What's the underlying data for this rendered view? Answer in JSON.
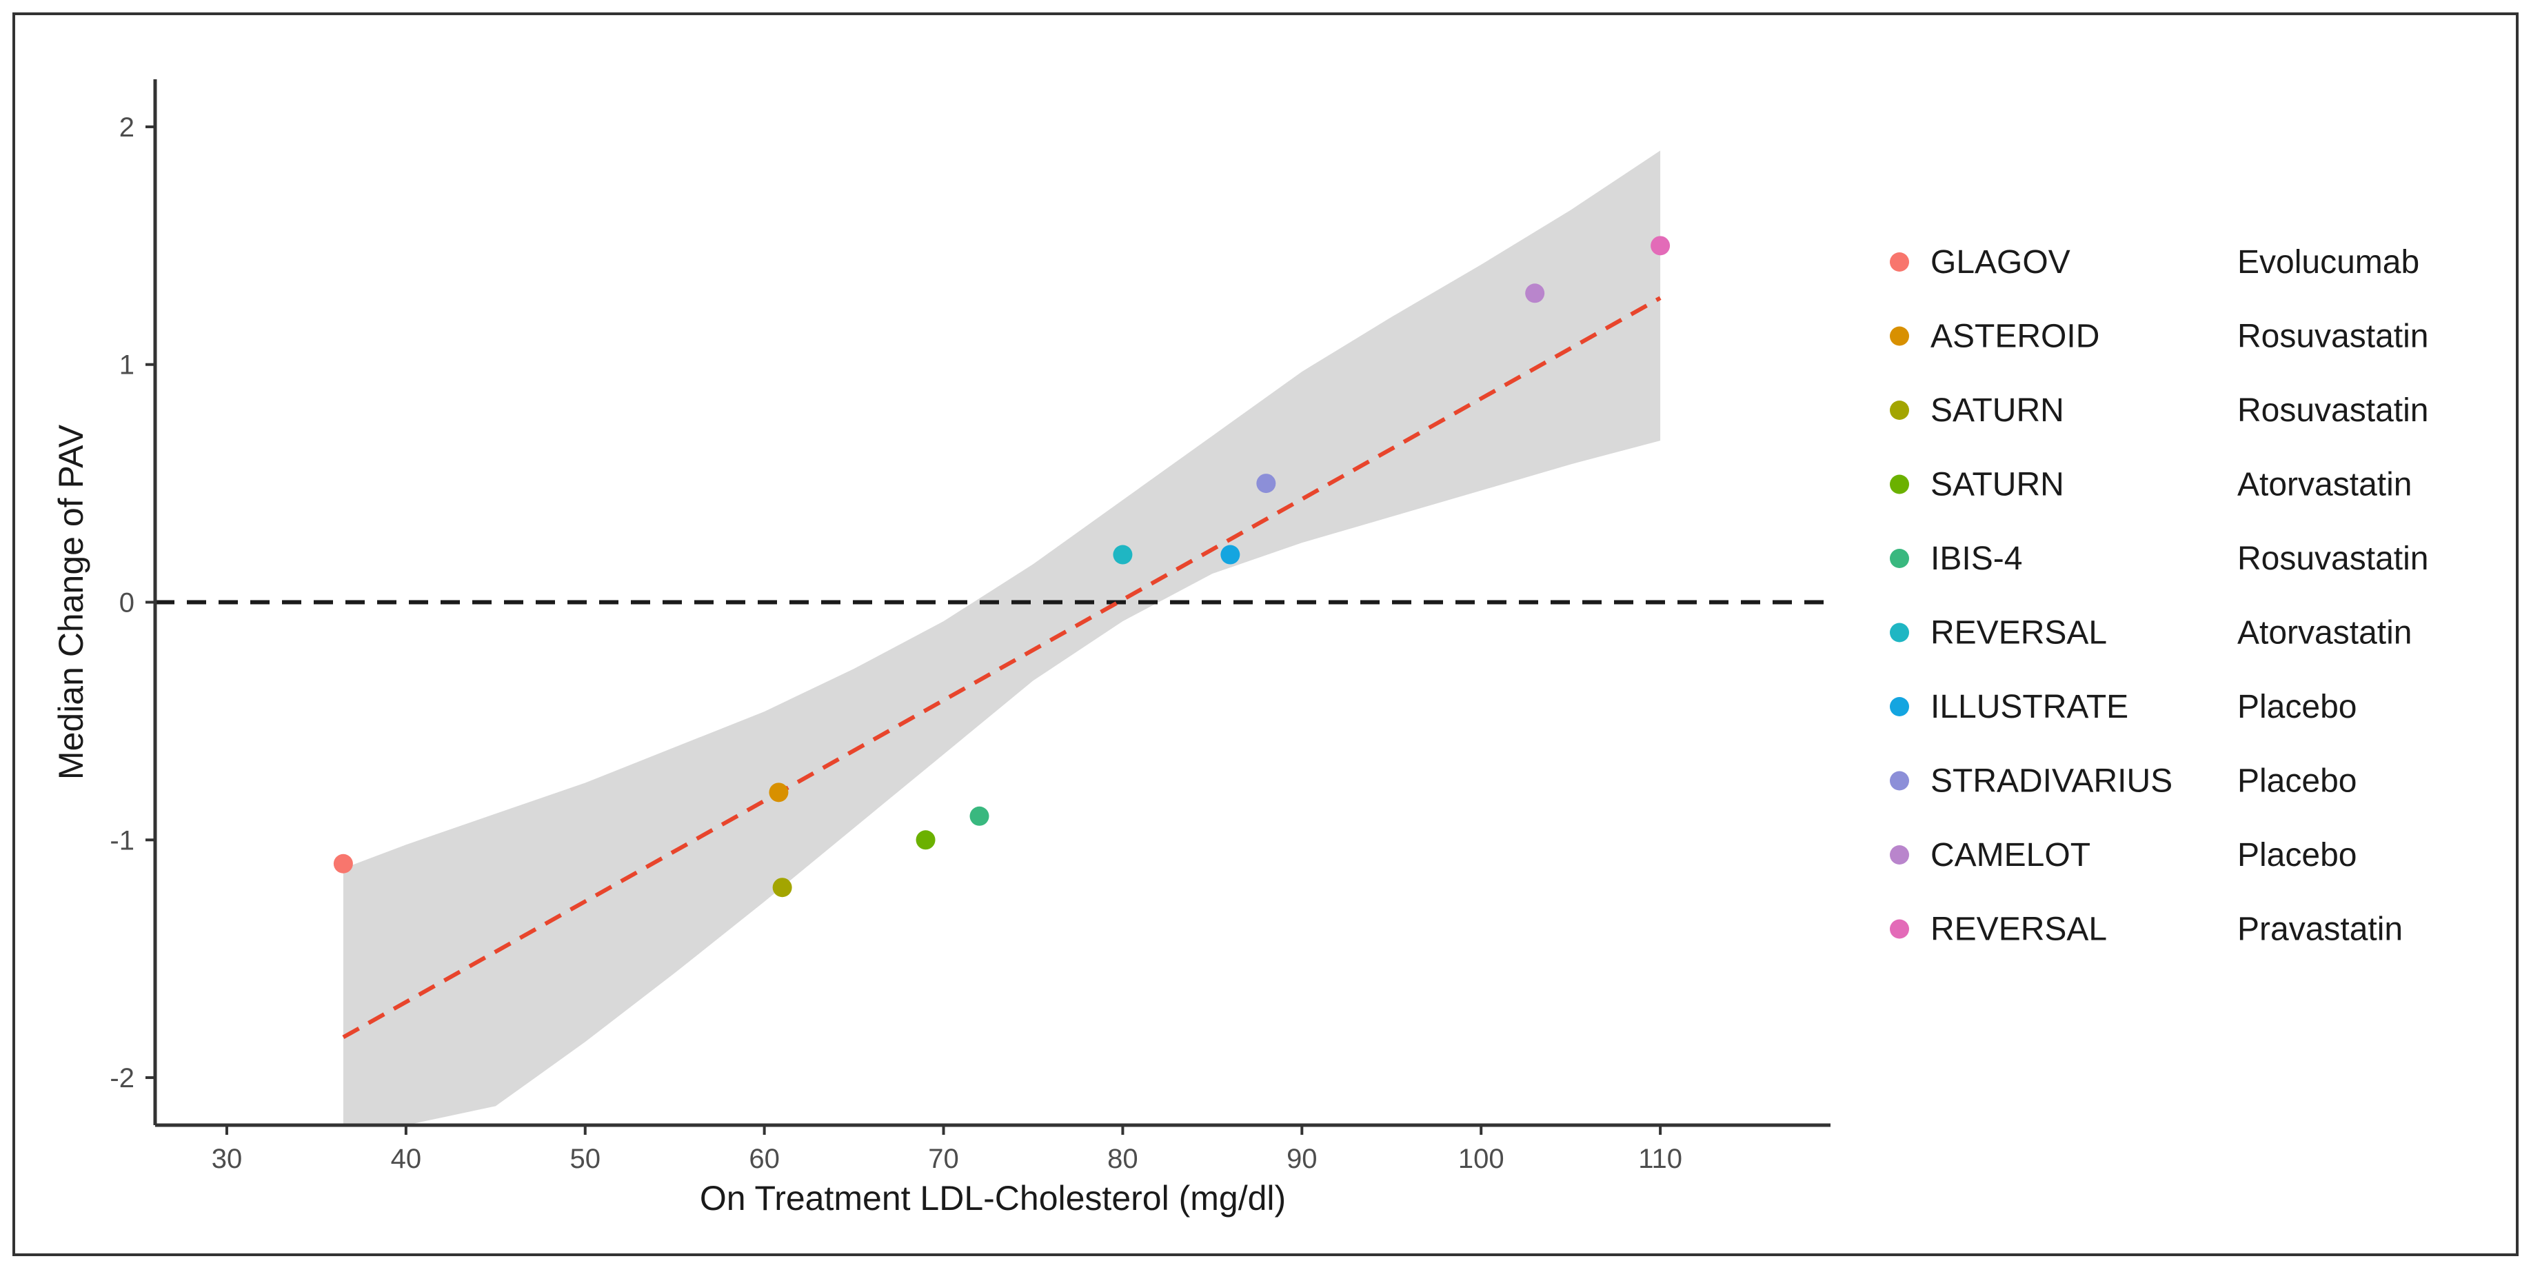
{
  "chart_data": {
    "type": "scatter",
    "xlabel": "On Treatment LDL-Cholesterol (mg/dl)",
    "ylabel": "Median Change of PAV",
    "xlim": [
      26,
      119.5
    ],
    "ylim": [
      -2.2,
      2.2
    ],
    "xticks": [
      30,
      40,
      50,
      60,
      70,
      80,
      90,
      100,
      110
    ],
    "yticks": [
      -2,
      -1,
      0,
      1,
      2
    ],
    "xtick_labels": [
      "30",
      "40",
      "50",
      "60",
      "70",
      "80",
      "90",
      "100",
      "110"
    ],
    "ytick_labels": [
      "-2",
      "-1",
      "0",
      "1",
      "2"
    ],
    "reference_line": {
      "y": 0,
      "style": "dashed",
      "color": "#1a1a1a"
    },
    "regression": {
      "x": [
        36.5,
        110
      ],
      "y": [
        -1.83,
        1.28
      ],
      "color": "#e8452c",
      "style": "dashed"
    },
    "confidence_band": {
      "color": "#d9d9d9",
      "x": [
        36.5,
        40,
        45,
        50,
        55,
        60,
        65,
        70,
        75,
        80,
        85,
        90,
        95,
        100,
        105,
        110
      ],
      "upper": [
        -1.12,
        -1.02,
        -0.89,
        -0.76,
        -0.61,
        -0.46,
        -0.28,
        -0.08,
        0.16,
        0.43,
        0.7,
        0.97,
        1.2,
        1.42,
        1.65,
        1.9
      ],
      "lower": [
        -2.2,
        -2.2,
        -2.12,
        -1.85,
        -1.56,
        -1.26,
        -0.95,
        -0.64,
        -0.33,
        -0.08,
        0.12,
        0.25,
        0.36,
        0.47,
        0.58,
        0.68
      ]
    },
    "series": [
      {
        "trial": "GLAGOV",
        "drug": "Evolucumab",
        "color": "#f8766d",
        "x": 36.5,
        "y": -1.1
      },
      {
        "trial": "ASTEROID",
        "drug": "Rosuvastatin",
        "color": "#d89000",
        "x": 60.8,
        "y": -0.8
      },
      {
        "trial": "SATURN",
        "drug": "Rosuvastatin",
        "color": "#a3a500",
        "x": 61.0,
        "y": -1.2
      },
      {
        "trial": "SATURN",
        "drug": "Atorvastatin",
        "color": "#6bb100",
        "x": 69.0,
        "y": -1.0
      },
      {
        "trial": "IBIS-4",
        "drug": "Rosuvastatin",
        "color": "#39b87f",
        "x": 72.0,
        "y": -0.9
      },
      {
        "trial": "REVERSAL",
        "drug": "Atorvastatin",
        "color": "#1fb6c3",
        "x": 80.0,
        "y": 0.2
      },
      {
        "trial": "ILLUSTRATE",
        "drug": "Placebo",
        "color": "#14a5e0",
        "x": 86.0,
        "y": 0.2
      },
      {
        "trial": "STRADIVARIUS",
        "drug": "Placebo",
        "color": "#8c8fd8",
        "x": 88.0,
        "y": 0.5
      },
      {
        "trial": "CAMELOT",
        "drug": "Placebo",
        "color": "#b985cc",
        "x": 103.0,
        "y": 1.3
      },
      {
        "trial": "REVERSAL",
        "drug": "Pravastatin",
        "color": "#e36bb8",
        "x": 110.0,
        "y": 1.5
      }
    ],
    "legend_position": "right"
  }
}
